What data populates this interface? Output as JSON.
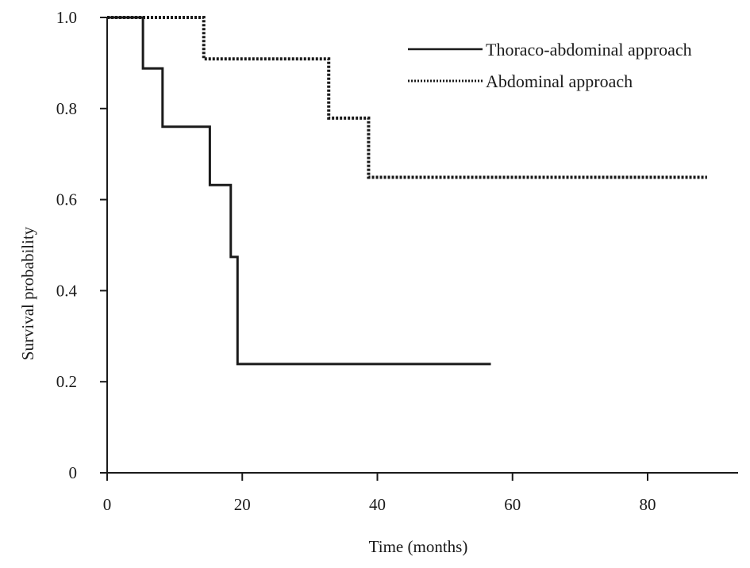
{
  "chart_data": {
    "type": "line",
    "subtype": "kaplan-meier step",
    "title": "",
    "xlabel": "Time (months)",
    "ylabel": "Survival probability",
    "xlim": [
      0,
      92
    ],
    "ylim": [
      0,
      1.0
    ],
    "x_ticks": [
      0,
      20,
      40,
      60,
      80
    ],
    "y_ticks": [
      {
        "value": 0,
        "label": "0"
      },
      {
        "value": 0.2,
        "label": "0.2"
      },
      {
        "value": 0.4,
        "label": "0.4"
      },
      {
        "value": 0.6,
        "label": "0.6"
      },
      {
        "value": 0.8,
        "label": "0.8"
      },
      {
        "value": 1.0,
        "label": "1.0"
      }
    ],
    "grid": false,
    "legend_position": "top-right",
    "series": [
      {
        "name": "Thoraco-abdominal approach",
        "line_style": "solid",
        "color": "#1a1a1a",
        "steps": [
          {
            "x": 0,
            "y": 1.0
          },
          {
            "x": 5.3,
            "y": 0.888
          },
          {
            "x": 8.2,
            "y": 0.76
          },
          {
            "x": 15.2,
            "y": 0.632
          },
          {
            "x": 18.3,
            "y": 0.474
          },
          {
            "x": 19.3,
            "y": 0.239
          }
        ],
        "end_x": 56.8
      },
      {
        "name": "Abdominal approach",
        "line_style": "dotted",
        "color": "#1a1a1a",
        "steps": [
          {
            "x": 0,
            "y": 1.0
          },
          {
            "x": 14.3,
            "y": 0.909
          },
          {
            "x": 32.8,
            "y": 0.779
          },
          {
            "x": 38.7,
            "y": 0.649
          }
        ],
        "end_x": 88.8
      }
    ]
  }
}
